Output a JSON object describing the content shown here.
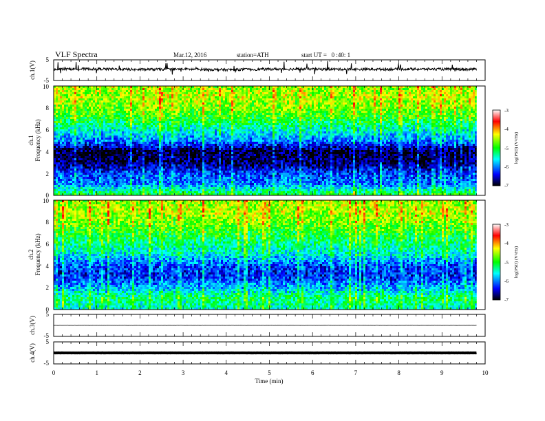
{
  "header": {
    "title": "VLF Spectra",
    "date": "Mar.12, 2016",
    "station": "station=ATH",
    "start": "start UT =   0 :40: 1"
  },
  "panels": {
    "ch1_wave": {
      "ylabel": "ch.1(V)",
      "ticks": [
        "5",
        "-5"
      ]
    },
    "ch1_spec": {
      "ylabel_top": "ch.1",
      "ylabel_bottom": "Frequency (kHz)",
      "ticks": [
        "10",
        "8",
        "6",
        "4",
        "2",
        "0"
      ]
    },
    "ch2_spec": {
      "ylabel_top": "ch.2",
      "ylabel_bottom": "Frequency (kHz)",
      "ticks": [
        "10",
        "8",
        "6",
        "4",
        "2",
        "0"
      ]
    },
    "ch3_wave": {
      "ylabel": "ch.3(V)",
      "ticks": [
        "5",
        "-5"
      ]
    },
    "ch4_wave": {
      "ylabel": "ch.4(V)",
      "ticks": [
        "5",
        "-5"
      ]
    }
  },
  "colorbar": {
    "label": "log(PSD) (V²/Hz)",
    "ticks": [
      "-3",
      "-4",
      "-5",
      "-6",
      "-7"
    ],
    "colors": [
      "#ffffff",
      "#ff0000",
      "#ffff00",
      "#00ff00",
      "#00ffff",
      "#0000ff",
      "#000000"
    ]
  },
  "xaxis": {
    "label": "Time (min)",
    "ticks": [
      "0",
      "1",
      "2",
      "3",
      "4",
      "5",
      "6",
      "7",
      "8",
      "9",
      "10"
    ]
  },
  "chart_data": [
    {
      "type": "line",
      "title": "VLF Spectra",
      "ylabel": "ch.1(V)",
      "xlabel": "Time (min)",
      "xlim": [
        0,
        10
      ],
      "ylim": [
        -5,
        5
      ],
      "series": [
        {
          "x": [
            0,
            1,
            2,
            3,
            4,
            5,
            6,
            7,
            8,
            9,
            9.8
          ],
          "values": [
            0.5,
            0.6,
            0.3,
            0.5,
            0.2,
            0.5,
            0.5,
            0.4,
            0.5,
            0.5,
            0.4
          ]
        }
      ]
    },
    {
      "type": "heatmap",
      "ylabel": "ch.1 Frequency (kHz)",
      "xlabel": "Time (min)",
      "xlim": [
        0,
        10
      ],
      "ylim": [
        0,
        10
      ],
      "x": [
        0,
        1,
        2,
        3,
        4,
        5,
        6,
        7,
        8,
        9,
        9.8
      ],
      "y": [
        0,
        1,
        2,
        3,
        4,
        5,
        6,
        7,
        8,
        9,
        10
      ],
      "values": [
        [
          -5.0,
          -5.0,
          -5.0,
          -5.0,
          -5.0,
          -5.0,
          -5.0,
          -5.0,
          -5.0,
          -5.0,
          -5.0
        ],
        [
          -6.0,
          -6.0,
          -6.0,
          -6.0,
          -6.0,
          -6.0,
          -6.0,
          -6.0,
          -6.0,
          -6.0,
          -6.0
        ],
        [
          -6.2,
          -6.2,
          -6.2,
          -6.2,
          -6.2,
          -6.2,
          -6.2,
          -6.2,
          -6.2,
          -6.2,
          -6.2
        ],
        [
          -6.8,
          -6.8,
          -6.8,
          -6.8,
          -6.8,
          -6.8,
          -6.8,
          -6.8,
          -6.8,
          -6.8,
          -6.8
        ],
        [
          -6.9,
          -6.9,
          -6.9,
          -6.9,
          -6.9,
          -6.9,
          -6.9,
          -6.9,
          -6.9,
          -6.9,
          -6.9
        ],
        [
          -6.0,
          -6.0,
          -6.0,
          -6.0,
          -6.0,
          -6.0,
          -6.0,
          -6.0,
          -6.0,
          -6.0,
          -6.0
        ],
        [
          -5.5,
          -5.5,
          -5.5,
          -5.5,
          -5.5,
          -5.5,
          -5.5,
          -5.5,
          -5.5,
          -5.5,
          -5.5
        ],
        [
          -5.0,
          -5.0,
          -5.0,
          -5.0,
          -5.0,
          -5.0,
          -5.0,
          -5.0,
          -5.0,
          -5.0,
          -5.0
        ],
        [
          -4.7,
          -4.7,
          -4.7,
          -4.7,
          -4.7,
          -4.7,
          -4.7,
          -4.7,
          -4.7,
          -4.7,
          -4.7
        ],
        [
          -4.5,
          -4.5,
          -4.5,
          -4.5,
          -4.5,
          -4.5,
          -4.5,
          -4.5,
          -4.5,
          -4.5,
          -4.5
        ],
        [
          -4.6,
          -4.6,
          -4.6,
          -4.6,
          -4.6,
          -4.6,
          -4.6,
          -4.6,
          -4.6,
          -4.6,
          -4.6
        ]
      ],
      "zlim": [
        -7,
        -3
      ]
    },
    {
      "type": "heatmap",
      "ylabel": "ch.2 Frequency (kHz)",
      "xlabel": "Time (min)",
      "xlim": [
        0,
        10
      ],
      "ylim": [
        0,
        10
      ],
      "x": [
        0,
        1,
        2,
        3,
        4,
        5,
        6,
        7,
        8,
        9,
        9.8
      ],
      "y": [
        0,
        1,
        2,
        3,
        4,
        5,
        6,
        7,
        8,
        9,
        10
      ],
      "values": [
        [
          -5.5,
          -5.5,
          -5.5,
          -5.5,
          -5.5,
          -5.5,
          -5.5,
          -5.5,
          -5.5,
          -5.5,
          -5.5
        ],
        [
          -5.2,
          -5.2,
          -5.2,
          -5.2,
          -5.2,
          -5.2,
          -5.2,
          -5.2,
          -5.2,
          -5.2,
          -5.2
        ],
        [
          -5.8,
          -5.8,
          -5.8,
          -5.8,
          -5.8,
          -5.8,
          -5.8,
          -5.8,
          -5.8,
          -5.8,
          -5.8
        ],
        [
          -6.3,
          -6.3,
          -6.3,
          -6.3,
          -6.3,
          -6.3,
          -6.3,
          -6.3,
          -6.3,
          -6.3,
          -6.3
        ],
        [
          -6.2,
          -6.2,
          -6.2,
          -6.2,
          -6.2,
          -6.2,
          -6.2,
          -6.2,
          -6.2,
          -6.2,
          -6.2
        ],
        [
          -5.6,
          -5.6,
          -5.6,
          -5.6,
          -5.6,
          -5.6,
          -5.6,
          -5.6,
          -5.6,
          -5.6,
          -5.6
        ],
        [
          -5.3,
          -5.3,
          -5.3,
          -5.3,
          -5.3,
          -5.3,
          -5.3,
          -5.3,
          -5.3,
          -5.3,
          -5.3
        ],
        [
          -5.0,
          -5.0,
          -5.0,
          -5.0,
          -5.0,
          -5.0,
          -5.0,
          -5.0,
          -5.0,
          -5.0,
          -5.0
        ],
        [
          -4.7,
          -4.7,
          -4.7,
          -4.7,
          -4.7,
          -4.7,
          -4.7,
          -4.7,
          -4.7,
          -4.7,
          -4.7
        ],
        [
          -4.5,
          -4.5,
          -4.5,
          -4.5,
          -4.5,
          -4.5,
          -4.5,
          -4.5,
          -4.5,
          -4.5,
          -4.5
        ],
        [
          -4.6,
          -4.6,
          -4.6,
          -4.6,
          -4.6,
          -4.6,
          -4.6,
          -4.6,
          -4.6,
          -4.6,
          -4.6
        ]
      ],
      "zlim": [
        -7,
        -3
      ]
    },
    {
      "type": "line",
      "ylabel": "ch.3(V)",
      "xlabel": "Time (min)",
      "xlim": [
        0,
        10
      ],
      "ylim": [
        -5,
        5
      ],
      "series": [
        {
          "x": [
            0,
            1,
            2,
            3,
            4,
            5,
            6,
            7,
            8,
            9,
            9.8
          ],
          "values": [
            0,
            0,
            0,
            0,
            0,
            0,
            0,
            0,
            0,
            0,
            0
          ]
        }
      ]
    },
    {
      "type": "line",
      "ylabel": "ch.4(V)",
      "xlabel": "Time (min)",
      "xlim": [
        0,
        10
      ],
      "ylim": [
        -5,
        5
      ],
      "series": [
        {
          "x": [
            0,
            1,
            2,
            3,
            4,
            5,
            6,
            7,
            8,
            9,
            9.8
          ],
          "values": [
            0,
            0,
            0,
            0,
            0,
            0,
            0,
            0,
            0,
            0,
            0
          ]
        }
      ]
    }
  ]
}
